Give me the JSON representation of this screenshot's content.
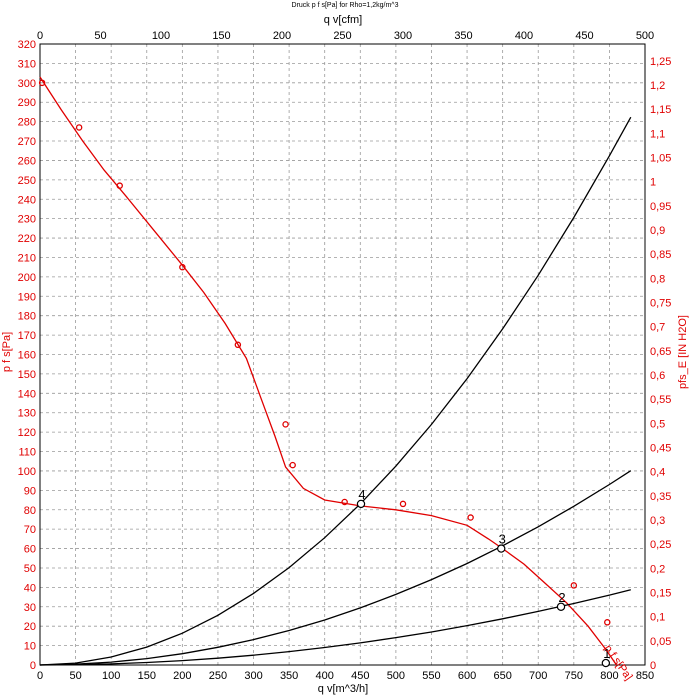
{
  "chart_data": {
    "type": "line",
    "title": "Druck p f s[Pa] for Rho=1,2kg/m^3",
    "xlabel": "q v[m^3/h]",
    "x2label": "q v[cfm]",
    "ylabel": "p f s[Pa]",
    "y2label": "pfs_E [IN H2O]",
    "xlim": [
      0,
      850
    ],
    "x2lim": [
      0,
      500
    ],
    "ylim": [
      0,
      320
    ],
    "y2lim": [
      0,
      1.285
    ],
    "x_ticks": [
      "0",
      "50",
      "100",
      "150",
      "200",
      "250",
      "300",
      "350",
      "400",
      "450",
      "500",
      "550",
      "600",
      "650",
      "700",
      "750",
      "800",
      "850"
    ],
    "x2_ticks": [
      "0",
      "50",
      "100",
      "150",
      "200",
      "250",
      "300",
      "350",
      "400",
      "450",
      "500"
    ],
    "y_ticks": [
      "0",
      "10",
      "20",
      "30",
      "40",
      "50",
      "60",
      "70",
      "80",
      "90",
      "100",
      "110",
      "120",
      "130",
      "140",
      "150",
      "160",
      "170",
      "180",
      "190",
      "200",
      "210",
      "220",
      "230",
      "240",
      "250",
      "260",
      "270",
      "280",
      "290",
      "300",
      "310",
      "320"
    ],
    "y2_ticks": [
      "0",
      "0,05",
      "0,1",
      "0,15",
      "0,2",
      "0,25",
      "0,3",
      "0,35",
      "0,4",
      "0,45",
      "0,5",
      "0,55",
      "0,6",
      "0,65",
      "0,7",
      "0,75",
      "0,8",
      "0,85",
      "0,9",
      "0,95",
      "1",
      "1,05",
      "1,1",
      "1,15",
      "1,2",
      "1,25"
    ],
    "grid": true,
    "fan_curve_label": "p f s[Pa]",
    "series": [
      {
        "name": "p f s[Pa]",
        "color": "#e00000",
        "x": [
          0,
          30,
          60,
          90,
          120,
          160,
          200,
          230,
          260,
          290,
          310,
          330,
          345,
          370,
          400,
          450,
          500,
          550,
          600,
          630,
          650,
          680,
          710,
          740,
          770,
          795,
          810
        ],
        "y": [
          303,
          286,
          270,
          255,
          242,
          224,
          206,
          192,
          176,
          158,
          138,
          118,
          102,
          91,
          85,
          82,
          80,
          77,
          72,
          65,
          60,
          52,
          42,
          32,
          20,
          8,
          0
        ]
      },
      {
        "name": "",
        "color": "#000000",
        "x": [
          0,
          50,
          100,
          150,
          200,
          250,
          300,
          350,
          400,
          450,
          500,
          550,
          600,
          650,
          700,
          750,
          800,
          830
        ],
        "y": [
          0,
          1.0,
          4.1,
          9.2,
          16.4,
          25.6,
          36.9,
          50.2,
          65.6,
          83.0,
          102.5,
          124.0,
          147.6,
          173.2,
          200.8,
          230.6,
          262.4,
          282.3
        ]
      },
      {
        "name": "",
        "color": "#000000",
        "x": [
          0,
          50,
          100,
          150,
          200,
          250,
          300,
          350,
          400,
          450,
          500,
          550,
          600,
          650,
          700,
          750,
          800,
          830
        ],
        "y": [
          0,
          0.4,
          1.5,
          3.3,
          5.8,
          9.1,
          13.1,
          17.8,
          23.2,
          29.4,
          36.4,
          44.0,
          52.3,
          61.4,
          71.2,
          81.8,
          93.0,
          100.1
        ]
      },
      {
        "name": "",
        "color": "#000000",
        "x": [
          0,
          50,
          100,
          150,
          200,
          250,
          300,
          350,
          400,
          450,
          500,
          550,
          600,
          650,
          700,
          750,
          800,
          830
        ],
        "y": [
          0,
          0.14,
          0.56,
          1.27,
          2.25,
          3.52,
          5.07,
          6.9,
          9.0,
          11.4,
          14.1,
          17.0,
          20.3,
          23.8,
          27.6,
          31.7,
          36.0,
          38.8
        ]
      }
    ],
    "measured_points": {
      "x": [
        3,
        55,
        112,
        200,
        278,
        345,
        355,
        428,
        510,
        605,
        750,
        797
      ],
      "y": [
        300,
        277,
        247,
        205,
        165,
        124,
        103,
        84,
        83,
        76,
        41,
        22
      ]
    },
    "operating_points": [
      {
        "label": "1",
        "x": 795,
        "y": 1
      },
      {
        "label": "2",
        "x": 732,
        "y": 30
      },
      {
        "label": "3",
        "x": 648,
        "y": 60
      },
      {
        "label": "4",
        "x": 451,
        "y": 83
      }
    ]
  }
}
